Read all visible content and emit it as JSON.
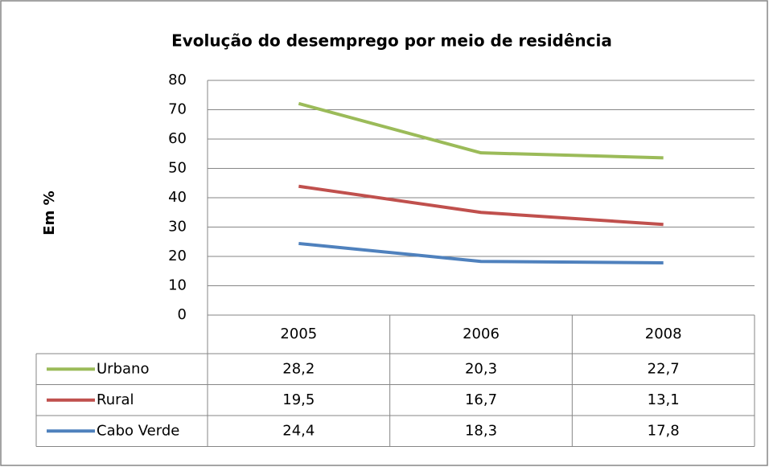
{
  "chart_data": {
    "type": "line",
    "stacked": true,
    "title": "Evolução do desemprego por meio de residência",
    "y_label": "Em %",
    "categories": [
      "2005",
      "2006",
      "2008"
    ],
    "series": [
      {
        "name": "Urbano",
        "color": "#9bbb59",
        "values": [
          28.2,
          20.3,
          22.7
        ],
        "value_labels": [
          "28,2",
          "20,3",
          "22,7"
        ]
      },
      {
        "name": "Rural",
        "color": "#c0504d",
        "values": [
          19.5,
          16.7,
          13.1
        ],
        "value_labels": [
          "19,5",
          "16,7",
          "13,1"
        ]
      },
      {
        "name": "Cabo Verde",
        "color": "#4f81bd",
        "values": [
          24.4,
          18.3,
          17.8
        ],
        "value_labels": [
          "24,4",
          "18,3",
          "17,8"
        ]
      }
    ],
    "ylim": [
      0,
      80
    ],
    "yticks": [
      0,
      10,
      20,
      30,
      40,
      50,
      60,
      70,
      80
    ],
    "grid": true
  }
}
